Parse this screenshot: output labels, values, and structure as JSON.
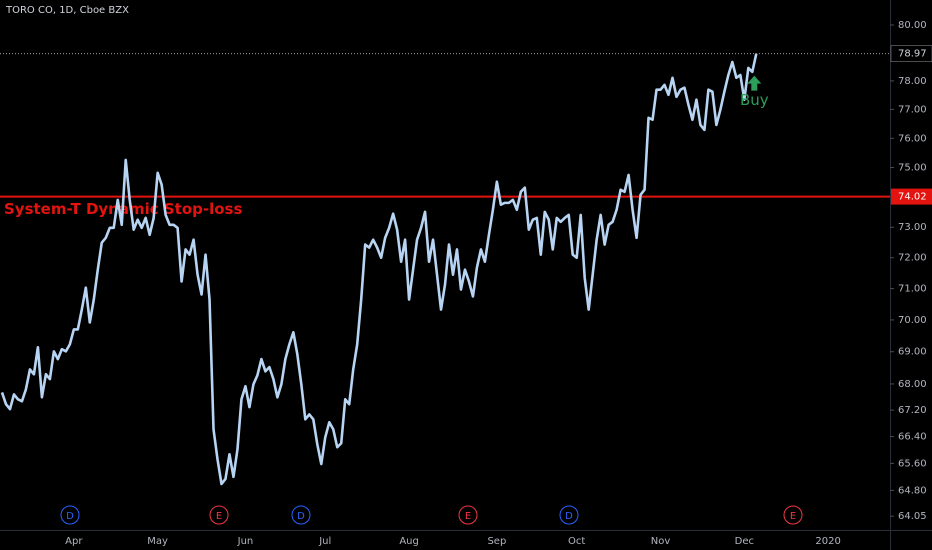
{
  "chart_data": {
    "type": "line",
    "title": "TORO CO, 1D, Cboe BZX",
    "color": "#b7d4f3",
    "log_scale": true,
    "grid": false,
    "ylim": [
      63.65,
      80.91
    ],
    "yticks": [
      64.05,
      {
        "value": 64.8,
        "label": "64.80"
      },
      {
        "value": 65.6,
        "label": "65.60"
      },
      {
        "value": 66.4,
        "label": "66.40"
      },
      {
        "value": 67.2,
        "label": "67.20"
      },
      {
        "value": 68,
        "label": "68.00"
      },
      {
        "value": 69,
        "label": "69.00"
      },
      {
        "value": 70,
        "label": "70.00"
      },
      {
        "value": 71,
        "label": "71.00"
      },
      {
        "value": 72,
        "label": "72.00"
      },
      {
        "value": 73,
        "label": "73.00"
      },
      {
        "value": 75,
        "label": "75.00"
      },
      {
        "value": 76,
        "label": "76.00"
      },
      {
        "value": 77,
        "label": "77.00"
      },
      {
        "value": 78,
        "label": "78.00"
      },
      {
        "value": 80,
        "label": "80.00"
      }
    ],
    "stop_loss": {
      "label": "System-T Dynamic Stop-loss",
      "value": 74.02,
      "value_label": "74.02",
      "color": "#e3130f"
    },
    "annotation": {
      "text": "Buy",
      "color": "#2e9e5b"
    },
    "events": [
      "D",
      "E",
      "D",
      "E",
      "D",
      "E"
    ],
    "categories": [
      null,
      null,
      null,
      null,
      null,
      null,
      null,
      null,
      null,
      null,
      null,
      null,
      null,
      null,
      null,
      null,
      null,
      null,
      "Apr",
      null,
      null,
      null,
      null,
      null,
      null,
      null,
      null,
      null,
      null,
      null,
      null,
      null,
      null,
      null,
      null,
      null,
      null,
      null,
      null,
      "May",
      null,
      null,
      null,
      null,
      null,
      null,
      null,
      null,
      null,
      null,
      null,
      null,
      null,
      null,
      null,
      null,
      null,
      null,
      null,
      null,
      null,
      "Jun",
      null,
      null,
      null,
      null,
      null,
      null,
      null,
      null,
      null,
      null,
      null,
      null,
      null,
      null,
      null,
      null,
      null,
      null,
      null,
      "Jul",
      null,
      null,
      null,
      null,
      null,
      null,
      null,
      null,
      null,
      null,
      null,
      null,
      null,
      null,
      null,
      null,
      null,
      null,
      null,
      null,
      "Aug",
      null,
      null,
      null,
      null,
      null,
      null,
      null,
      null,
      null,
      null,
      null,
      null,
      null,
      null,
      null,
      null,
      null,
      null,
      null,
      null,
      null,
      "Sep",
      null,
      null,
      null,
      null,
      null,
      null,
      null,
      null,
      null,
      null,
      null,
      null,
      null,
      null,
      null,
      null,
      null,
      null,
      null,
      "Oct",
      null,
      null,
      null,
      null,
      null,
      null,
      null,
      null,
      null,
      null,
      null,
      null,
      null,
      null,
      null,
      null,
      null,
      null,
      null,
      null,
      "Nov",
      null,
      null,
      null,
      null,
      null,
      null,
      null,
      null,
      null,
      null,
      null,
      null,
      null,
      null,
      null,
      null,
      null,
      null,
      null,
      null,
      "Dec",
      null,
      null,
      null,
      null,
      null,
      null,
      null,
      null,
      null,
      null,
      null,
      null,
      null,
      null,
      null,
      null,
      null,
      null,
      null,
      null,
      "2020",
      null,
      null,
      null,
      null,
      null,
      null,
      null,
      null,
      null,
      null,
      null,
      null,
      null,
      null,
      null
    ],
    "values": [
      67.74,
      67.38,
      67.23,
      67.68,
      67.53,
      67.47,
      67.84,
      68.45,
      68.3,
      69.14,
      67.59,
      68.3,
      68.15,
      69.01,
      68.77,
      69.08,
      69.01,
      69.23,
      69.7,
      69.7,
      70.33,
      71.03,
      69.92,
      70.65,
      71.61,
      72.49,
      72.65,
      72.98,
      72.98,
      73.91,
      73.08,
      75.26,
      73.91,
      72.92,
      73.25,
      72.98,
      73.31,
      72.75,
      73.31,
      74.82,
      74.42,
      73.41,
      73.08,
      73.08,
      72.98,
      71.23,
      72.27,
      72.1,
      72.59,
      71.45,
      70.81,
      72.1,
      70.65,
      66.62,
      65.72,
      64.99,
      65.14,
      65.87,
      65.2,
      66.02,
      67.53,
      67.93,
      67.29,
      67.99,
      68.27,
      68.77,
      68.39,
      68.52,
      68.15,
      67.59,
      67.99,
      68.77,
      69.23,
      69.61,
      68.92,
      67.99,
      66.92,
      67.07,
      66.92,
      66.17,
      65.58,
      66.38,
      66.83,
      66.62,
      66.08,
      66.2,
      67.53,
      67.38,
      68.45,
      69.23,
      70.65,
      72.43,
      72.33,
      72.59,
      72.33,
      72.0,
      72.65,
      72.98,
      73.45,
      72.92,
      71.87,
      72.59,
      70.65,
      71.61,
      72.59,
      72.98,
      73.51,
      71.87,
      72.59,
      71.45,
      70.33,
      71.13,
      72.43,
      71.45,
      72.27,
      70.97,
      71.61,
      71.23,
      70.75,
      71.68,
      72.27,
      71.87,
      72.75,
      73.58,
      74.52,
      73.75,
      73.81,
      73.81,
      73.91,
      73.58,
      74.18,
      74.32,
      72.92,
      73.25,
      73.31,
      72.1,
      73.51,
      73.25,
      72.27,
      73.31,
      73.18,
      73.31,
      73.41,
      72.1,
      72.0,
      73.41,
      71.35,
      70.33,
      71.45,
      72.59,
      73.41,
      72.43,
      73.08,
      73.18,
      73.58,
      74.25,
      74.18,
      74.75,
      73.58,
      72.65,
      74.08,
      74.25,
      76.71,
      76.64,
      77.69,
      77.69,
      77.86,
      77.51,
      78.11,
      77.44,
      77.69,
      77.76,
      77.16,
      76.64,
      77.34,
      76.46,
      76.29,
      77.69,
      77.62,
      76.46,
      76.99,
      77.62,
      78.21,
      78.67,
      78.11,
      78.21,
      77.34,
      78.46,
      78.32,
      78.97,
      null,
      null,
      null,
      null,
      null,
      null,
      null,
      null,
      null,
      null,
      null,
      null,
      null,
      null,
      null,
      null,
      null,
      null,
      null,
      null,
      null,
      null,
      null,
      null,
      null,
      null,
      null,
      null,
      null,
      null,
      null,
      null,
      null
    ]
  }
}
